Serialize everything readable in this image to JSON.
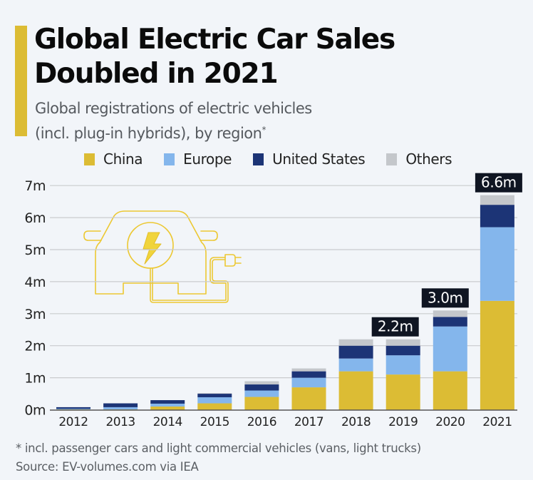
{
  "chart_data": {
    "type": "bar",
    "stacked": true,
    "title": "Global Electric Car Sales Doubled in 2021",
    "subtitle_line1": "Global registrations of electric vehicles",
    "subtitle_line2": "(incl. plug-in hybrids), by region",
    "subtitle_mark": "*",
    "xlabel": "",
    "ylabel": "",
    "ylim": [
      0,
      7
    ],
    "grid": true,
    "legend_position": "top",
    "yticks": [
      {
        "value": 0,
        "label": "0m"
      },
      {
        "value": 1,
        "label": "1m"
      },
      {
        "value": 2,
        "label": "2m"
      },
      {
        "value": 3,
        "label": "3m"
      },
      {
        "value": 4,
        "label": "4m"
      },
      {
        "value": 5,
        "label": "5m"
      },
      {
        "value": 6,
        "label": "6m"
      },
      {
        "value": 7,
        "label": "7m"
      }
    ],
    "categories": [
      "2012",
      "2013",
      "2014",
      "2015",
      "2016",
      "2017",
      "2018",
      "2019",
      "2020",
      "2021"
    ],
    "series": [
      {
        "name": "China",
        "color": "#dcbc34",
        "values": [
          0.01,
          0.01,
          0.1,
          0.2,
          0.4,
          0.7,
          1.2,
          1.1,
          1.2,
          3.4
        ]
      },
      {
        "name": "Europe",
        "color": "#84b6ec",
        "values": [
          0.02,
          0.07,
          0.09,
          0.19,
          0.2,
          0.3,
          0.4,
          0.6,
          1.4,
          2.3
        ]
      },
      {
        "name": "United States",
        "color": "#1c3476",
        "values": [
          0.05,
          0.12,
          0.11,
          0.11,
          0.19,
          0.2,
          0.4,
          0.3,
          0.3,
          0.7
        ]
      },
      {
        "name": "Others",
        "color": "#c4c7cb",
        "values": [
          0.0,
          0.0,
          0.0,
          0.02,
          0.1,
          0.09,
          0.2,
          0.2,
          0.2,
          0.3
        ]
      }
    ],
    "annotations": [
      {
        "category": "2019",
        "text": "2.2m"
      },
      {
        "category": "2020",
        "text": "3.0m"
      },
      {
        "category": "2021",
        "text": "6.6m"
      }
    ]
  },
  "legend": [
    {
      "label": "China",
      "color": "#dcbc34"
    },
    {
      "label": "Europe",
      "color": "#84b6ec"
    },
    {
      "label": "United States",
      "color": "#1c3476"
    },
    {
      "label": "Others",
      "color": "#c4c7cb"
    }
  ],
  "illustration": {
    "icon": "electric-car-icon",
    "color": "#ecc832"
  },
  "footnote": "* incl. passenger cars and light commercial vehicles (vans, light trucks)",
  "source": "Source: EV-volumes.com via IEA"
}
